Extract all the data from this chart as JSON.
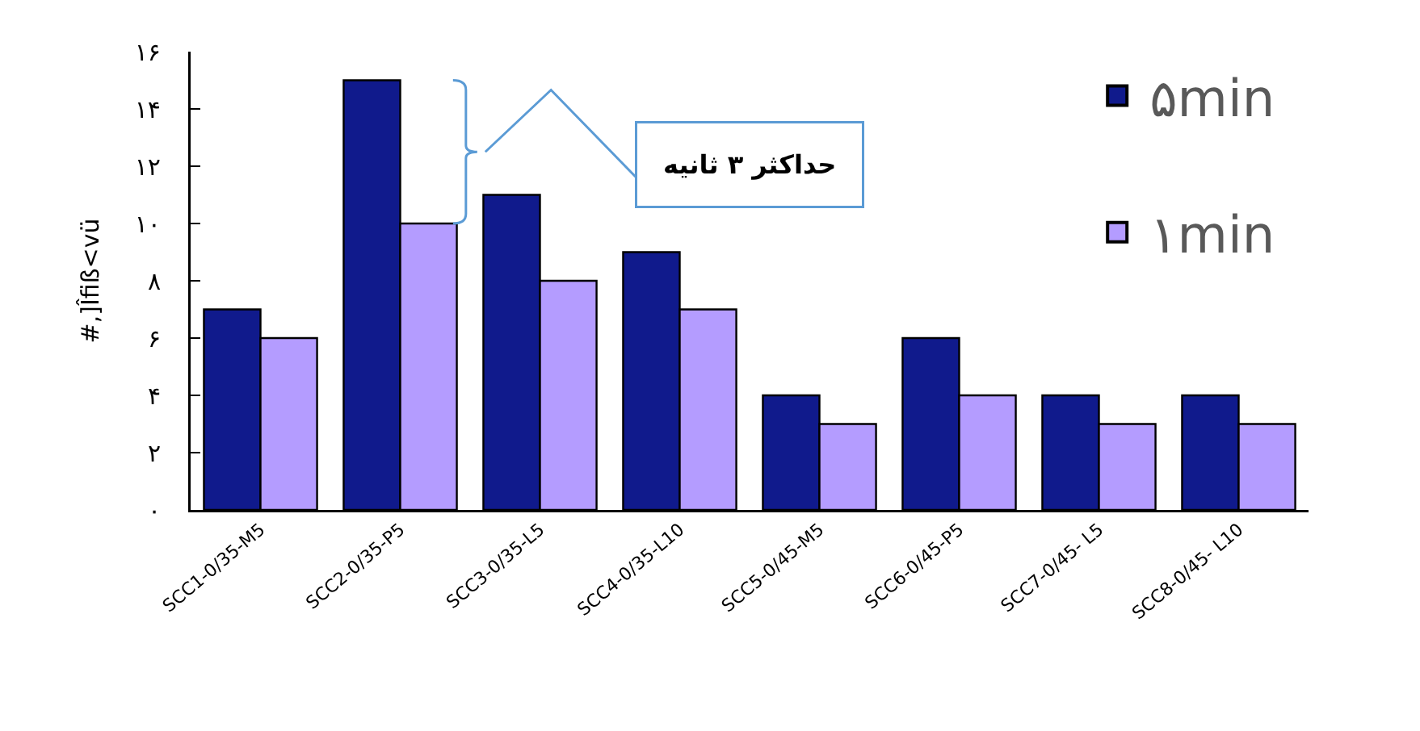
{
  "chart_data": {
    "type": "bar",
    "ylabel": "#,]Îfiß<vü",
    "categories": [
      "SCC1-0/35-M5",
      "SCC2-0/35-P5",
      "SCC3-0/35-L5",
      "SCC4-0/35-L10",
      "SCC5-0/45-M5",
      "SCC6-0/45-P5",
      "SCC7-0/45- L5",
      "SCC8-0/45- L10"
    ],
    "series": [
      {
        "name": "۵min",
        "color": "#101a8c",
        "values": [
          7,
          15,
          11,
          9,
          4,
          6,
          4,
          4
        ]
      },
      {
        "name": "۱min",
        "color": "#b49cff",
        "values": [
          6,
          10,
          8,
          7,
          3,
          4,
          3,
          3
        ]
      }
    ],
    "ylim": [
      0,
      16
    ],
    "yticks": [
      {
        "value": 0,
        "label": "۰"
      },
      {
        "value": 2,
        "label": "۲"
      },
      {
        "value": 4,
        "label": "۴"
      },
      {
        "value": 6,
        "label": "۶"
      },
      {
        "value": 8,
        "label": "۸"
      },
      {
        "value": 10,
        "label": "۱۰"
      },
      {
        "value": 12,
        "label": "۱۲"
      },
      {
        "value": 14,
        "label": "۱۴"
      },
      {
        "value": 16,
        "label": "۱۶"
      }
    ],
    "annotations": [
      "حداکثر ۳ ثانیه"
    ],
    "grid": false,
    "legend": "top right"
  }
}
